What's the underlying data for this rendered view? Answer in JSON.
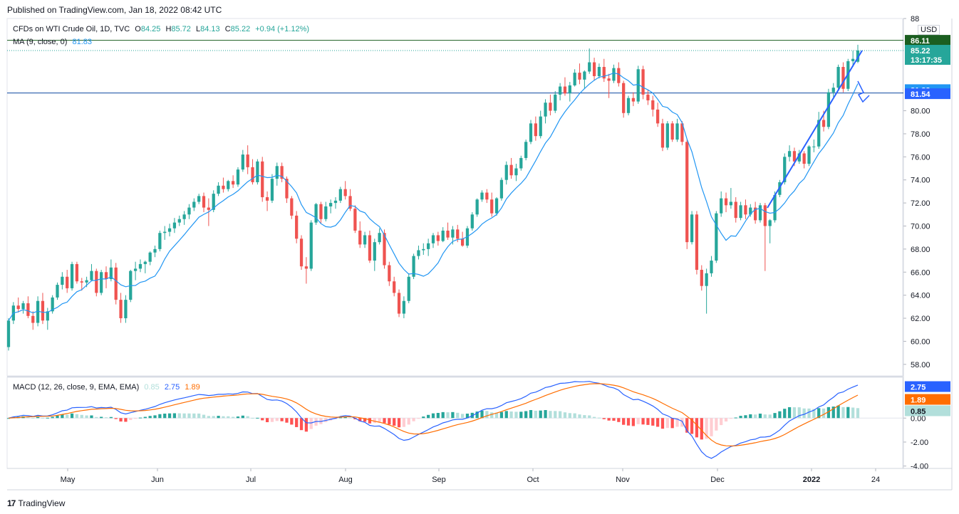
{
  "header": {
    "published": "Published on TradingView.com, Jan 18, 2022 08:42 UTC"
  },
  "legend_main": {
    "symbol": "CFDs on WTI Crude Oil, 1D, TVC",
    "o_label": "O",
    "o": "84.25",
    "h_label": "H",
    "h": "85.72",
    "l_label": "L",
    "l": "84.13",
    "c_label": "C",
    "c": "85.22",
    "change": "+0.94 (+1.12%)"
  },
  "legend_ma": {
    "label": "MA (9, close, 0)",
    "value": "81.83"
  },
  "legend_macd": {
    "label": "MACD (12, 26, close, 9, EMA, EMA)",
    "hist": "0.85",
    "macd": "2.75",
    "signal": "1.89"
  },
  "currency": "USD",
  "price_badges": {
    "high_line": "86.11",
    "last_price": "85.22",
    "countdown": "13:17:35",
    "ma": "81.83",
    "support": "81.54",
    "macd": "2.75",
    "signal": "1.89",
    "hist": "0.85"
  },
  "footer": {
    "brand": "TradingView"
  },
  "colors": {
    "up": "#26a69a",
    "down": "#ef5350",
    "ma": "#2196f3",
    "macd": "#2962ff",
    "signal": "#ff6d00",
    "hist_up_strong": "#26a69a",
    "hist_up_weak": "#b2dfdb",
    "hist_down_strong": "#ff5252",
    "hist_down_weak": "#ffcdd2",
    "trend": "#2962ff"
  },
  "chart_data": {
    "type": "candlestick",
    "title": "CFDs on WTI Crude Oil, 1D, TVC",
    "ylim": [
      57,
      88
    ],
    "y_ticks": [
      "58.00",
      "60.00",
      "62.00",
      "64.00",
      "66.00",
      "68.00",
      "70.00",
      "72.00",
      "74.00",
      "76.00",
      "78.00",
      "80.00",
      "88"
    ],
    "x_ticks": [
      "May",
      "Jun",
      "Jul",
      "Aug",
      "Sep",
      "Oct",
      "Nov",
      "Dec",
      "2022",
      "24"
    ],
    "candles": [
      [
        59.5,
        62.0,
        59.2,
        61.8
      ],
      [
        61.8,
        63.4,
        61.5,
        63.1
      ],
      [
        63.1,
        63.8,
        62.5,
        62.8
      ],
      [
        62.8,
        63.5,
        62.4,
        63.3
      ],
      [
        63.3,
        63.9,
        62.0,
        62.2
      ],
      [
        62.2,
        62.6,
        61.0,
        61.6
      ],
      [
        61.6,
        63.9,
        61.3,
        63.5
      ],
      [
        63.5,
        64.2,
        61.5,
        61.8
      ],
      [
        61.8,
        62.9,
        61.0,
        62.6
      ],
      [
        62.6,
        64.0,
        62.4,
        63.8
      ],
      [
        63.8,
        65.1,
        63.6,
        64.9
      ],
      [
        64.9,
        66.0,
        64.5,
        65.6
      ],
      [
        65.6,
        66.2,
        64.2,
        64.6
      ],
      [
        64.6,
        66.9,
        64.4,
        66.7
      ],
      [
        66.7,
        66.9,
        65.0,
        65.2
      ],
      [
        65.2,
        65.5,
        64.4,
        65.1
      ],
      [
        65.1,
        65.6,
        64.7,
        65.3
      ],
      [
        65.3,
        66.7,
        65.2,
        66.1
      ],
      [
        66.1,
        66.3,
        63.9,
        64.2
      ],
      [
        64.2,
        66.2,
        64.0,
        66.0
      ],
      [
        66.0,
        66.5,
        64.6,
        65.4
      ],
      [
        65.4,
        67.1,
        65.2,
        66.4
      ],
      [
        66.4,
        66.8,
        63.2,
        63.6
      ],
      [
        63.6,
        64.2,
        61.6,
        62.0
      ],
      [
        62.0,
        64.0,
        61.6,
        63.6
      ],
      [
        63.6,
        66.2,
        63.4,
        66.1
      ],
      [
        66.1,
        66.9,
        65.3,
        66.3
      ],
      [
        66.3,
        67.1,
        66.0,
        66.7
      ],
      [
        66.7,
        67.0,
        65.9,
        66.9
      ],
      [
        66.9,
        67.8,
        66.6,
        67.7
      ],
      [
        67.7,
        68.3,
        67.3,
        68.0
      ],
      [
        68.0,
        69.6,
        67.8,
        69.4
      ],
      [
        69.4,
        70.0,
        68.8,
        69.5
      ],
      [
        69.5,
        70.2,
        69.1,
        69.8
      ],
      [
        69.8,
        70.7,
        69.4,
        70.3
      ],
      [
        70.3,
        70.9,
        70.0,
        70.6
      ],
      [
        70.6,
        71.3,
        70.1,
        71.0
      ],
      [
        71.0,
        71.9,
        70.6,
        71.6
      ],
      [
        71.6,
        72.4,
        71.3,
        72.1
      ],
      [
        72.1,
        72.8,
        71.9,
        72.6
      ],
      [
        72.6,
        72.9,
        71.2,
        71.6
      ],
      [
        71.6,
        72.4,
        70.0,
        71.4
      ],
      [
        71.4,
        73.1,
        71.2,
        72.8
      ],
      [
        72.8,
        73.8,
        72.6,
        73.5
      ],
      [
        73.5,
        74.2,
        72.9,
        73.2
      ],
      [
        73.2,
        74.0,
        73.0,
        73.9
      ],
      [
        73.9,
        74.4,
        73.3,
        73.6
      ],
      [
        73.6,
        75.1,
        73.4,
        74.9
      ],
      [
        74.9,
        76.6,
        74.7,
        76.2
      ],
      [
        76.2,
        77.0,
        74.5,
        75.1
      ],
      [
        75.1,
        75.8,
        73.6,
        73.8
      ],
      [
        73.8,
        75.8,
        73.6,
        75.6
      ],
      [
        75.6,
        76.0,
        72.1,
        72.5
      ],
      [
        72.5,
        73.0,
        71.3,
        72.2
      ],
      [
        72.2,
        74.5,
        72.0,
        74.1
      ],
      [
        74.1,
        75.5,
        73.5,
        75.2
      ],
      [
        75.2,
        75.5,
        73.8,
        74.1
      ],
      [
        74.1,
        74.3,
        72.0,
        72.4
      ],
      [
        72.4,
        72.6,
        70.6,
        70.9
      ],
      [
        70.9,
        71.3,
        68.5,
        68.9
      ],
      [
        68.9,
        69.2,
        66.2,
        66.5
      ],
      [
        66.5,
        67.3,
        65.0,
        66.3
      ],
      [
        66.3,
        70.5,
        66.1,
        70.3
      ],
      [
        70.3,
        72.0,
        70.1,
        71.9
      ],
      [
        71.9,
        72.1,
        70.2,
        70.6
      ],
      [
        70.6,
        72.1,
        70.4,
        71.7
      ],
      [
        71.7,
        72.3,
        71.1,
        72.0
      ],
      [
        72.0,
        72.5,
        71.5,
        72.2
      ],
      [
        72.2,
        73.4,
        72.0,
        73.2
      ],
      [
        73.2,
        73.9,
        72.3,
        72.6
      ],
      [
        72.6,
        73.2,
        71.3,
        71.5
      ],
      [
        71.5,
        71.8,
        69.4,
        69.6
      ],
      [
        69.6,
        70.4,
        68.1,
        68.4
      ],
      [
        68.4,
        69.5,
        68.1,
        69.2
      ],
      [
        69.2,
        69.6,
        66.8,
        67.0
      ],
      [
        67.0,
        68.9,
        66.1,
        68.6
      ],
      [
        68.6,
        69.8,
        68.4,
        69.4
      ],
      [
        69.4,
        69.7,
        66.3,
        66.6
      ],
      [
        66.6,
        66.9,
        64.8,
        65.2
      ],
      [
        65.2,
        65.6,
        63.9,
        64.2
      ],
      [
        64.2,
        64.5,
        62.1,
        62.4
      ],
      [
        62.4,
        63.9,
        62.0,
        63.5
      ],
      [
        63.5,
        65.9,
        63.3,
        65.6
      ],
      [
        65.6,
        67.6,
        65.4,
        67.4
      ],
      [
        67.4,
        68.3,
        67.1,
        67.9
      ],
      [
        67.9,
        68.5,
        67.5,
        68.0
      ],
      [
        68.0,
        68.9,
        67.4,
        68.5
      ],
      [
        68.5,
        69.4,
        68.1,
        69.2
      ],
      [
        69.2,
        69.5,
        68.3,
        68.7
      ],
      [
        68.7,
        69.9,
        68.6,
        69.6
      ],
      [
        69.6,
        70.3,
        68.8,
        69.0
      ],
      [
        69.0,
        70.0,
        68.4,
        69.7
      ],
      [
        69.7,
        70.1,
        68.6,
        68.9
      ],
      [
        68.9,
        69.5,
        68.2,
        68.3
      ],
      [
        68.3,
        70.0,
        68.1,
        69.8
      ],
      [
        69.8,
        71.2,
        69.6,
        71.0
      ],
      [
        71.0,
        72.4,
        70.8,
        72.3
      ],
      [
        72.3,
        73.1,
        72.1,
        72.9
      ],
      [
        72.9,
        73.2,
        72.0,
        72.3
      ],
      [
        72.3,
        72.9,
        70.8,
        71.1
      ],
      [
        71.1,
        72.5,
        70.9,
        72.4
      ],
      [
        72.4,
        74.2,
        72.2,
        74.0
      ],
      [
        74.0,
        75.6,
        73.6,
        75.3
      ],
      [
        75.3,
        75.9,
        74.1,
        74.4
      ],
      [
        74.4,
        75.4,
        73.9,
        75.0
      ],
      [
        75.0,
        76.1,
        74.8,
        75.9
      ],
      [
        75.9,
        77.5,
        75.7,
        77.3
      ],
      [
        77.3,
        79.2,
        77.1,
        78.9
      ],
      [
        78.9,
        79.5,
        77.4,
        77.8
      ],
      [
        77.8,
        80.0,
        77.6,
        79.5
      ],
      [
        79.5,
        81.0,
        78.9,
        80.7
      ],
      [
        80.7,
        81.4,
        79.6,
        80.0
      ],
      [
        80.0,
        81.7,
        79.8,
        81.4
      ],
      [
        81.4,
        82.4,
        80.9,
        82.1
      ],
      [
        82.1,
        82.9,
        81.3,
        81.5
      ],
      [
        81.5,
        82.5,
        80.8,
        82.2
      ],
      [
        82.2,
        83.6,
        82.1,
        83.3
      ],
      [
        83.3,
        84.1,
        82.3,
        82.7
      ],
      [
        82.7,
        83.5,
        81.9,
        83.4
      ],
      [
        83.4,
        85.4,
        83.2,
        84.2
      ],
      [
        84.2,
        84.6,
        82.6,
        83.0
      ],
      [
        83.0,
        84.1,
        82.8,
        83.8
      ],
      [
        83.8,
        84.5,
        82.5,
        82.8
      ],
      [
        82.8,
        83.2,
        81.1,
        82.6
      ],
      [
        82.6,
        84.0,
        82.4,
        83.7
      ],
      [
        83.7,
        84.2,
        82.1,
        82.4
      ],
      [
        82.4,
        82.6,
        79.4,
        79.8
      ],
      [
        79.8,
        81.3,
        79.6,
        81.1
      ],
      [
        81.1,
        81.6,
        80.4,
        80.8
      ],
      [
        80.8,
        83.9,
        80.6,
        83.6
      ],
      [
        83.6,
        83.9,
        81.0,
        81.4
      ],
      [
        81.4,
        81.8,
        80.5,
        80.9
      ],
      [
        80.9,
        81.3,
        79.5,
        80.1
      ],
      [
        80.1,
        80.7,
        78.6,
        78.9
      ],
      [
        78.9,
        79.3,
        76.5,
        76.8
      ],
      [
        76.8,
        79.1,
        76.6,
        78.9
      ],
      [
        78.9,
        79.1,
        77.3,
        77.5
      ],
      [
        77.5,
        79.3,
        77.3,
        78.9
      ],
      [
        78.9,
        79.1,
        77.0,
        77.3
      ],
      [
        77.3,
        77.5,
        68.0,
        68.6
      ],
      [
        68.6,
        71.3,
        68.4,
        71.0
      ],
      [
        71.0,
        71.3,
        65.8,
        66.2
      ],
      [
        66.2,
        66.6,
        64.4,
        64.8
      ],
      [
        64.8,
        66.3,
        62.4,
        65.9
      ],
      [
        65.9,
        67.4,
        65.6,
        67.0
      ],
      [
        67.0,
        71.3,
        66.8,
        71.1
      ],
      [
        71.1,
        73.0,
        70.8,
        72.4
      ],
      [
        72.4,
        72.9,
        71.2,
        71.8
      ],
      [
        71.8,
        73.3,
        71.5,
        72.1
      ],
      [
        72.1,
        72.5,
        70.3,
        70.7
      ],
      [
        70.7,
        72.1,
        70.5,
        71.8
      ],
      [
        71.8,
        72.3,
        70.6,
        71.0
      ],
      [
        71.0,
        71.9,
        70.8,
        71.6
      ],
      [
        71.6,
        72.1,
        70.2,
        70.5
      ],
      [
        70.5,
        72.0,
        70.3,
        71.8
      ],
      [
        71.8,
        72.0,
        66.1,
        70.0
      ],
      [
        70.0,
        70.6,
        68.5,
        70.5
      ],
      [
        70.5,
        73.0,
        70.3,
        72.7
      ],
      [
        72.7,
        74.0,
        72.5,
        73.8
      ],
      [
        73.8,
        76.3,
        73.6,
        76.0
      ],
      [
        76.0,
        77.0,
        75.6,
        76.5
      ],
      [
        76.5,
        76.8,
        75.2,
        75.6
      ],
      [
        75.6,
        76.6,
        75.4,
        76.3
      ],
      [
        76.3,
        76.5,
        75.0,
        75.4
      ],
      [
        75.4,
        77.0,
        75.2,
        76.9
      ],
      [
        76.9,
        77.5,
        76.4,
        76.9
      ],
      [
        76.9,
        79.9,
        76.7,
        79.2
      ],
      [
        79.2,
        80.0,
        78.2,
        78.6
      ],
      [
        78.6,
        81.9,
        78.4,
        81.6
      ],
      [
        81.6,
        82.4,
        81.2,
        82.0
      ],
      [
        82.0,
        84.0,
        81.7,
        83.8
      ],
      [
        83.8,
        84.2,
        81.6,
        81.9
      ],
      [
        81.9,
        84.5,
        81.7,
        84.3
      ],
      [
        84.3,
        85.2,
        83.8,
        84.5
      ],
      [
        84.25,
        85.72,
        84.13,
        85.22
      ]
    ],
    "ma_period": 9,
    "macd": {
      "hist_last": 0.85,
      "macd_last": 2.75,
      "signal_last": 1.89,
      "ylim": [
        -4.2,
        3.4
      ]
    }
  }
}
